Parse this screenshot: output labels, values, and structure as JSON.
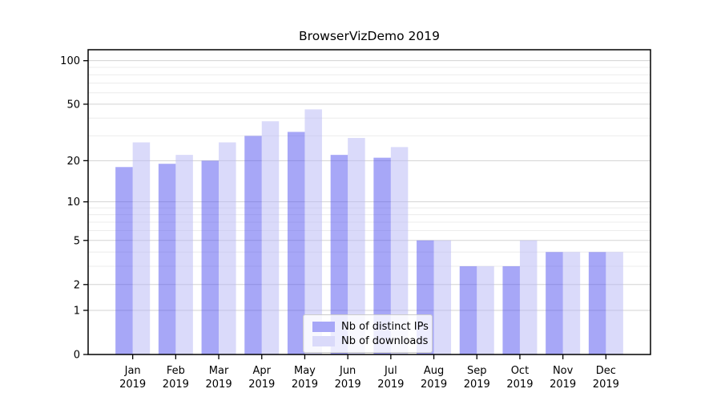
{
  "chart_data": {
    "type": "bar",
    "title": "BrowserVizDemo 2019",
    "y_scale": "log1p",
    "y_axis_top_value": 119,
    "y_major_ticks": [
      100,
      50,
      20,
      10,
      5,
      2,
      1,
      0
    ],
    "y_minor_gridlines": [
      3,
      4,
      6,
      7,
      8,
      9,
      30,
      40,
      60,
      70,
      80,
      90
    ],
    "categories": [
      "Jan 2019",
      "Feb 2019",
      "Mar 2019",
      "Apr 2019",
      "May 2019",
      "Jun 2019",
      "Jul 2019",
      "Aug 2019",
      "Sep 2019",
      "Oct 2019",
      "Nov 2019",
      "Dec 2019"
    ],
    "x_tick_labels_line1": [
      "Jan",
      "Feb",
      "Mar",
      "Apr",
      "May",
      "Jun",
      "Jul",
      "Aug",
      "Sep",
      "Oct",
      "Nov",
      "Dec"
    ],
    "x_tick_labels_line2": [
      "2019",
      "2019",
      "2019",
      "2019",
      "2019",
      "2019",
      "2019",
      "2019",
      "2019",
      "2019",
      "2019",
      "2019"
    ],
    "series": [
      {
        "name": "Nb of distinct IPs",
        "color": "#a7a7f7",
        "values": [
          18,
          19,
          20,
          30,
          32,
          22,
          21,
          5,
          3,
          3,
          4,
          4
        ]
      },
      {
        "name": "Nb of downloads",
        "color": "#dadafa",
        "values": [
          27,
          22,
          27,
          38,
          46,
          29,
          25,
          5,
          3,
          5,
          4,
          4
        ]
      }
    ],
    "legend": {
      "position": "lower-center-inside",
      "entries": [
        "Nb of distinct IPs",
        "Nb of downloads"
      ]
    },
    "colors": {
      "grid_major": "#d3d3d3",
      "grid_minor": "#ececec",
      "axis_frame": "#000000",
      "tick_text": "#000000",
      "series_base_alpha": 0.5,
      "series_base_fills": [
        "#4f4fef",
        "#b5b5f5"
      ]
    }
  }
}
